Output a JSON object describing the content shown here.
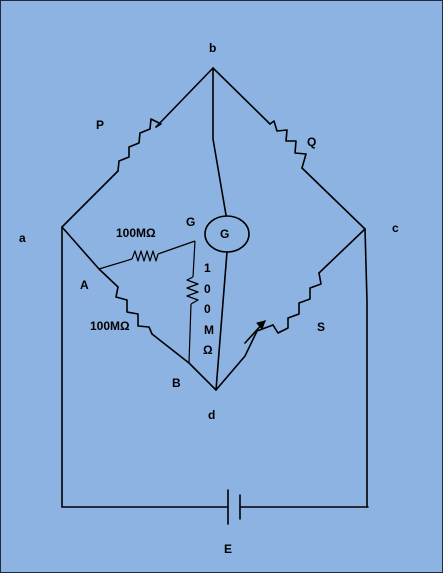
{
  "nodes": {
    "b": "b",
    "a": "a",
    "c": "c",
    "d": "d",
    "A": "A",
    "B": "B",
    "G_terminal": "G"
  },
  "resistors": {
    "P": "P",
    "Q": "Q",
    "S": "S",
    "r_top": "100MΩ",
    "r_left": "100MΩ",
    "r_vertical": [
      "1",
      "0",
      "0",
      "M",
      "Ω"
    ]
  },
  "galvanometer": "G",
  "battery": "E",
  "colors": {
    "background": "#8db3e2",
    "wire": "#000000",
    "border": "#1f2a44"
  }
}
